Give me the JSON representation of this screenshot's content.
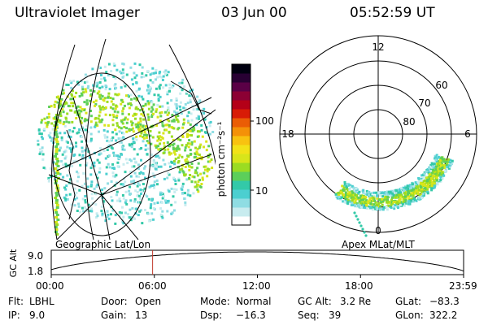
{
  "header": {
    "title": "Ultraviolet Imager",
    "date": "03 Jun 00",
    "time": "05:52:59 UT"
  },
  "geo_panel": {
    "label": "Geographic Lat/Lon"
  },
  "colorbar": {
    "unit_label": "photon cm⁻²s⁻¹",
    "ticks": [
      "100",
      "10"
    ],
    "colors": [
      "#ffffff",
      "#c8ecef",
      "#8fdde3",
      "#4ccfd0",
      "#33c9a8",
      "#5ccf5a",
      "#9bdc22",
      "#d8e51a",
      "#f2e218",
      "#f8c210",
      "#f49108",
      "#ea5d05",
      "#d81c06",
      "#b40018",
      "#8c0034",
      "#5a0046",
      "#280033",
      "#000010"
    ]
  },
  "polar_panel": {
    "label": "Apex MLat/MLT",
    "hour_labels": {
      "top": "12",
      "right": "6",
      "bottom": "0",
      "left": "18"
    },
    "lat_labels": [
      "60",
      "70",
      "80"
    ]
  },
  "timeline": {
    "ylabel": "GC Alt",
    "y_ticks": [
      "9.0",
      "1.8"
    ],
    "x_ticks": [
      "00:00",
      "06:00",
      "12:00",
      "18:00",
      "23:59"
    ],
    "current_time_fraction": 0.2458
  },
  "info": {
    "flt_label": "Flt:",
    "flt_value": "LBHL",
    "ip_label": "IP:",
    "ip_value": "9.0",
    "door_label": "Door:",
    "door_value": "Open",
    "gain_label": "Gain:",
    "gain_value": "13",
    "mode_label": "Mode:",
    "mode_value": "Normal",
    "dsp_label": "Dsp:",
    "dsp_value": "−16.3",
    "gcalt_label": "GC Alt:",
    "gcalt_value": "3.2 Re",
    "seq_label": "Seq:",
    "seq_value": "39",
    "glat_label": "GLat:",
    "glat_value": "−83.3",
    "glon_label": "GLon:",
    "glon_value": "322.2"
  }
}
